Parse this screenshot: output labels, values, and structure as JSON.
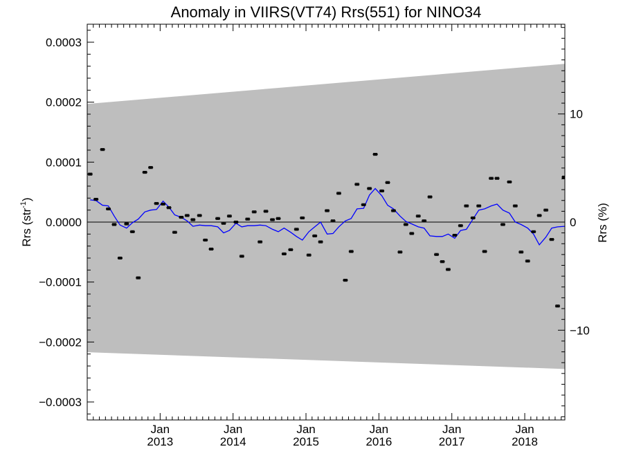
{
  "chart_data": {
    "type": "scatter",
    "title": "Anomaly in VIIRS(VT74) Rrs(551) for NINO34",
    "ylabel_left": {
      "base": "Rrs (str",
      "sup": "-1",
      "tail": ")"
    },
    "ylabel_right": "Rrs (%)",
    "xlim": [
      2012.0,
      2018.55
    ],
    "ylim": [
      -0.00033,
      0.00033
    ],
    "ylim_right": [
      -18.3,
      18.3
    ],
    "left_yticks": [
      {
        "value": 0.0003,
        "label": "0.0003"
      },
      {
        "value": 0.0002,
        "label": "0.0002"
      },
      {
        "value": 0.0001,
        "label": "0.0001"
      },
      {
        "value": 0.0,
        "label": "0.0000"
      },
      {
        "value": -0.0001,
        "label": "−0.0001"
      },
      {
        "value": -0.0002,
        "label": "−0.0002"
      },
      {
        "value": -0.0003,
        "label": "−0.0003"
      }
    ],
    "right_yticks": [
      {
        "value": 10,
        "label": "10"
      },
      {
        "value": 0,
        "label": "0"
      },
      {
        "value": -10,
        "label": "−10"
      }
    ],
    "xticks": [
      {
        "value": 2013.0,
        "line1": "Jan",
        "line2": "2013"
      },
      {
        "value": 2014.0,
        "line1": "Jan",
        "line2": "2014"
      },
      {
        "value": 2015.0,
        "line1": "Jan",
        "line2": "2015"
      },
      {
        "value": 2016.0,
        "line1": "Jan",
        "line2": "2016"
      },
      {
        "value": 2017.0,
        "line1": "Jan",
        "line2": "2017"
      },
      {
        "value": 2018.0,
        "line1": "Jan",
        "line2": "2018"
      }
    ],
    "uncertainty_band": {
      "x": [
        2012.0,
        2018.55
      ],
      "upper": [
        0.000197,
        0.000264
      ],
      "lower": [
        -0.000217,
        -0.000245
      ],
      "color": "#bebebe"
    },
    "zero_line": 0.0,
    "series": [
      {
        "kind": "points_with_error",
        "color": "#000000",
        "error": 1.8e-06,
        "points": [
          [
            2012.04,
            8e-05
          ],
          [
            2012.12,
            3.8e-05
          ],
          [
            2012.21,
            0.000121
          ],
          [
            2012.29,
            2.2e-05
          ],
          [
            2012.37,
            -4e-06
          ],
          [
            2012.45,
            -6e-05
          ],
          [
            2012.54,
            -3e-06
          ],
          [
            2012.62,
            -1.6e-05
          ],
          [
            2012.7,
            -9.3e-05
          ],
          [
            2012.79,
            8.3e-05
          ],
          [
            2012.87,
            9.1e-05
          ],
          [
            2012.95,
            3.1e-05
          ],
          [
            2013.04,
            3e-05
          ],
          [
            2013.12,
            2.4e-05
          ],
          [
            2013.2,
            -1.7e-05
          ],
          [
            2013.29,
            8e-06
          ],
          [
            2013.37,
            1.1e-05
          ],
          [
            2013.45,
            4e-06
          ],
          [
            2013.54,
            1.1e-05
          ],
          [
            2013.62,
            -3e-05
          ],
          [
            2013.7,
            -4.5e-05
          ],
          [
            2013.79,
            6e-06
          ],
          [
            2013.87,
            -2e-06
          ],
          [
            2013.95,
            1e-05
          ],
          [
            2014.04,
            0.0
          ],
          [
            2014.12,
            -5.7e-05
          ],
          [
            2014.2,
            5e-06
          ],
          [
            2014.29,
            1.7e-05
          ],
          [
            2014.37,
            -3.3e-05
          ],
          [
            2014.45,
            1.8e-05
          ],
          [
            2014.54,
            4e-06
          ],
          [
            2014.62,
            6e-06
          ],
          [
            2014.7,
            -5.3e-05
          ],
          [
            2014.79,
            -4.6e-05
          ],
          [
            2014.87,
            -1.2e-05
          ],
          [
            2014.95,
            7e-06
          ],
          [
            2015.04,
            -5.5e-05
          ],
          [
            2015.12,
            -2.3e-05
          ],
          [
            2015.2,
            -3.3e-05
          ],
          [
            2015.29,
            1.9e-05
          ],
          [
            2015.37,
            2e-06
          ],
          [
            2015.45,
            4.8e-05
          ],
          [
            2015.54,
            -9.7e-05
          ],
          [
            2015.62,
            -4.9e-05
          ],
          [
            2015.7,
            6.3e-05
          ],
          [
            2015.79,
            2.9e-05
          ],
          [
            2015.87,
            5.6e-05
          ],
          [
            2015.95,
            0.000113
          ],
          [
            2016.04,
            5.2e-05
          ],
          [
            2016.12,
            6.6e-05
          ],
          [
            2016.2,
            1.9e-05
          ],
          [
            2016.29,
            -5e-05
          ],
          [
            2016.37,
            -4e-06
          ],
          [
            2016.45,
            -1.9e-05
          ],
          [
            2016.54,
            1e-05
          ],
          [
            2016.62,
            2e-06
          ],
          [
            2016.7,
            4.2e-05
          ],
          [
            2016.79,
            -5.4e-05
          ],
          [
            2016.87,
            -6.6e-05
          ],
          [
            2016.95,
            -7.9e-05
          ],
          [
            2017.04,
            -2.2e-05
          ],
          [
            2017.12,
            -6e-06
          ],
          [
            2017.2,
            2.7e-05
          ],
          [
            2017.29,
            7e-06
          ],
          [
            2017.37,
            2.7e-05
          ],
          [
            2017.45,
            -4.9e-05
          ],
          [
            2017.54,
            7.3e-05
          ],
          [
            2017.62,
            7.3e-05
          ],
          [
            2017.7,
            -4e-06
          ],
          [
            2017.79,
            6.7e-05
          ],
          [
            2017.87,
            2.7e-05
          ],
          [
            2017.95,
            -5e-05
          ],
          [
            2018.04,
            -6.5e-05
          ],
          [
            2018.12,
            -1.6e-05
          ],
          [
            2018.2,
            1.1e-05
          ],
          [
            2018.29,
            2e-05
          ],
          [
            2018.37,
            -2.9e-05
          ],
          [
            2018.45,
            -0.00014
          ],
          [
            2018.54,
            7.5e-05
          ]
        ]
      },
      {
        "kind": "line",
        "color": "#0000ff",
        "points": [
          [
            2012.04,
            3.7e-05
          ],
          [
            2012.12,
            3.6e-05
          ],
          [
            2012.21,
            2.8e-05
          ],
          [
            2012.29,
            2.7e-05
          ],
          [
            2012.37,
            1e-05
          ],
          [
            2012.45,
            -5e-06
          ],
          [
            2012.54,
            -1e-05
          ],
          [
            2012.62,
            -1e-06
          ],
          [
            2012.7,
            5e-06
          ],
          [
            2012.79,
            1.7e-05
          ],
          [
            2012.87,
            2e-05
          ],
          [
            2012.95,
            2.1e-05
          ],
          [
            2013.04,
            3.5e-05
          ],
          [
            2013.12,
            2.5e-05
          ],
          [
            2013.2,
            1.2e-05
          ],
          [
            2013.29,
            8e-06
          ],
          [
            2013.37,
            2e-06
          ],
          [
            2013.45,
            -7e-06
          ],
          [
            2013.54,
            -5e-06
          ],
          [
            2013.62,
            -6e-06
          ],
          [
            2013.7,
            -6e-06
          ],
          [
            2013.79,
            -8e-06
          ],
          [
            2013.87,
            -1.8e-05
          ],
          [
            2013.95,
            -1.4e-05
          ],
          [
            2014.04,
            -2e-06
          ],
          [
            2014.12,
            -8e-06
          ],
          [
            2014.2,
            -6e-06
          ],
          [
            2014.29,
            -6e-06
          ],
          [
            2014.37,
            -5e-06
          ],
          [
            2014.45,
            -6e-06
          ],
          [
            2014.54,
            -1.2e-05
          ],
          [
            2014.62,
            -1.6e-05
          ],
          [
            2014.7,
            -1e-05
          ],
          [
            2014.79,
            -1.7e-05
          ],
          [
            2014.87,
            -2.4e-05
          ],
          [
            2014.95,
            -3e-05
          ],
          [
            2015.04,
            -1.6e-05
          ],
          [
            2015.12,
            -8e-06
          ],
          [
            2015.2,
            0.0
          ],
          [
            2015.29,
            -2e-05
          ],
          [
            2015.37,
            -1.9e-05
          ],
          [
            2015.45,
            -8e-06
          ],
          [
            2015.54,
            2e-06
          ],
          [
            2015.62,
            6e-06
          ],
          [
            2015.7,
            2.2e-05
          ],
          [
            2015.79,
            2.3e-05
          ],
          [
            2015.87,
            4.5e-05
          ],
          [
            2015.95,
            5.6e-05
          ],
          [
            2016.04,
            4.4e-05
          ],
          [
            2016.12,
            2.8e-05
          ],
          [
            2016.2,
            2.2e-05
          ],
          [
            2016.29,
            1e-05
          ],
          [
            2016.37,
            1e-06
          ],
          [
            2016.45,
            -3e-06
          ],
          [
            2016.54,
            -8e-06
          ],
          [
            2016.62,
            -1e-05
          ],
          [
            2016.7,
            -2.3e-05
          ],
          [
            2016.79,
            -2.4e-05
          ],
          [
            2016.87,
            -2.4e-05
          ],
          [
            2016.95,
            -2e-05
          ],
          [
            2017.04,
            -2.7e-05
          ],
          [
            2017.12,
            -1.4e-05
          ],
          [
            2017.2,
            -1.2e-05
          ],
          [
            2017.29,
            5e-06
          ],
          [
            2017.37,
            2e-05
          ],
          [
            2017.45,
            2.2e-05
          ],
          [
            2017.54,
            2.7e-05
          ],
          [
            2017.62,
            3e-05
          ],
          [
            2017.7,
            2e-05
          ],
          [
            2017.79,
            1.5e-05
          ],
          [
            2017.87,
            0.0
          ],
          [
            2017.95,
            -4e-06
          ],
          [
            2018.04,
            -1e-05
          ],
          [
            2018.12,
            -2e-05
          ],
          [
            2018.2,
            -3.8e-05
          ],
          [
            2018.29,
            -2.5e-05
          ],
          [
            2018.37,
            -1e-05
          ],
          [
            2018.45,
            -8e-06
          ],
          [
            2018.55,
            -7e-06
          ]
        ]
      }
    ]
  }
}
